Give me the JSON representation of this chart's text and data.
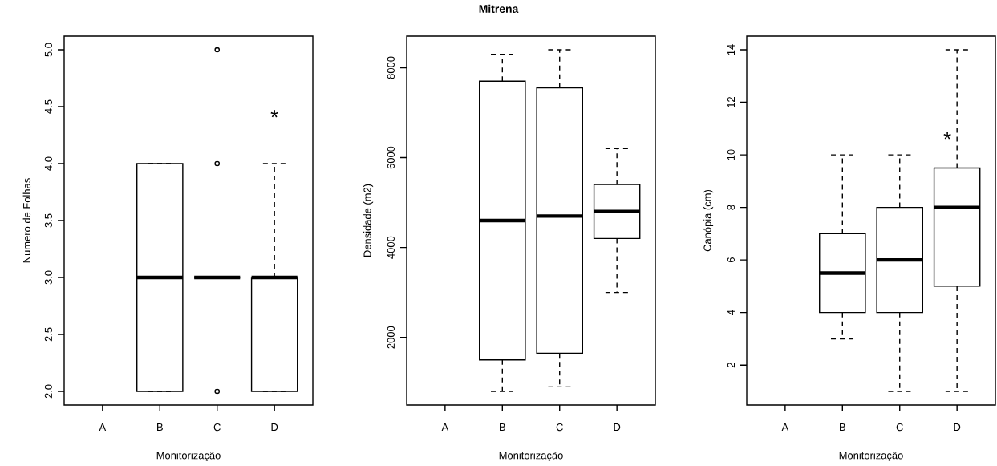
{
  "chart_data": [
    {
      "type": "box",
      "ylabel": "Numero de Folhas",
      "xlabel": "Monitorização",
      "categories": [
        "A",
        "B",
        "C",
        "D"
      ],
      "boxes": [
        null,
        {
          "low": 2,
          "q1": 2,
          "median": 3,
          "q3": 4,
          "high": 4
        },
        {
          "low": 3,
          "q1": 3,
          "median": 3,
          "q3": 3,
          "high": 3,
          "outliers": [
            2,
            4,
            5
          ]
        },
        {
          "low": 2,
          "q1": 2,
          "median": 3,
          "q3": 3,
          "high": 4
        }
      ],
      "ylim": [
        1.88,
        5.12
      ],
      "yticks": [
        {
          "value": 2,
          "label": "2.0"
        },
        {
          "value": 2.5,
          "label": "2.5"
        },
        {
          "value": 3,
          "label": "3.0"
        },
        {
          "value": 3.5,
          "label": "3.5"
        },
        {
          "value": 4,
          "label": "4.0"
        },
        {
          "value": 4.5,
          "label": "4.5"
        },
        {
          "value": 5,
          "label": "5.0"
        }
      ],
      "annotations": [
        "*"
      ]
    },
    {
      "type": "box",
      "title": "Mitrena",
      "ylabel": "Densidade (m2)",
      "xlabel": "Monitorização",
      "categories": [
        "A",
        "B",
        "C",
        "D"
      ],
      "boxes": [
        null,
        {
          "low": 800,
          "q1": 1500,
          "median": 4600,
          "q3": 7700,
          "high": 8300
        },
        {
          "low": 900,
          "q1": 1650,
          "median": 4700,
          "q3": 7550,
          "high": 8400
        },
        {
          "low": 3000,
          "q1": 4200,
          "median": 4800,
          "q3": 5400,
          "high": 6200
        }
      ],
      "ylim": [
        496,
        8704
      ],
      "yticks": [
        2000,
        4000,
        6000,
        8000
      ]
    },
    {
      "type": "box",
      "ylabel": "Canópia (cm)",
      "xlabel": "Monitorização",
      "categories": [
        "A",
        "B",
        "C",
        "D"
      ],
      "boxes": [
        null,
        {
          "low": 3,
          "q1": 4,
          "median": 5.5,
          "q3": 7,
          "high": 10
        },
        {
          "low": 1,
          "q1": 4,
          "median": 6,
          "q3": 8,
          "high": 10
        },
        {
          "low": 1,
          "q1": 5,
          "median": 8,
          "q3": 9.5,
          "high": 14
        }
      ],
      "ylim": [
        0.48,
        14.52
      ],
      "yticks": [
        2,
        4,
        6,
        8,
        10,
        12,
        14
      ],
      "annotations": [
        {
          "text": "*",
          "x": "D",
          "y": 10.6
        }
      ]
    }
  ]
}
